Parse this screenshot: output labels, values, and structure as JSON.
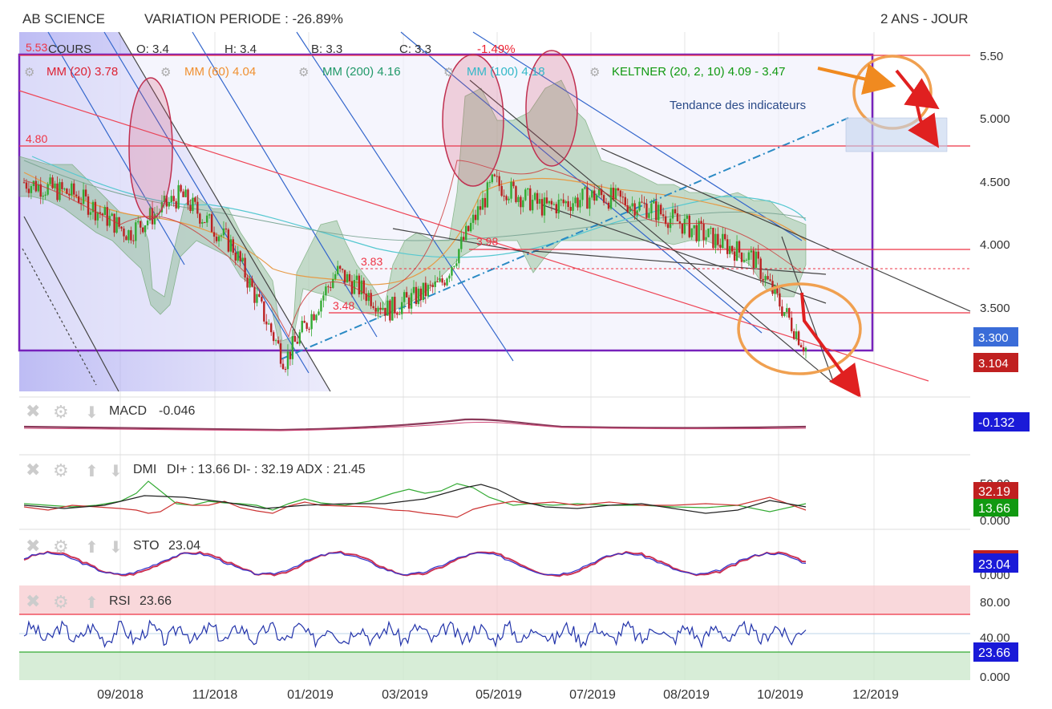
{
  "header": {
    "name": "AB SCIENCE",
    "variation": "VARIATION PERIODE : -26.89%",
    "period": "2 ANS - JOUR"
  },
  "quote": {
    "cours": "COURS",
    "o": "O: 3.4",
    "h": "H: 3.4",
    "b": "B: 3.3",
    "c": "C: 3.3",
    "chg": "-1.49%",
    "high_label": "5.53"
  },
  "indicators": {
    "mm20": "MM (20)  3.78",
    "mm60": "MM (60)  4.04",
    "mm200": "MM (200)  4.16",
    "mm100": "MM (100)  4.18",
    "keltner": "KELTNER (20, 2, 10)  4.09 - 3.47"
  },
  "annotation": "Tendance des indicateurs",
  "levels": [
    {
      "label": "4.80",
      "value": 4.8
    },
    {
      "label": "3.98",
      "value": 3.98
    },
    {
      "label": "3.83",
      "value": 3.83
    },
    {
      "label": "3.48",
      "value": 3.48
    }
  ],
  "colors": {
    "up": "#33aa33",
    "down": "#bb2222",
    "frame": "#7722bb",
    "level": "#ee3344",
    "orange": "#f0a050",
    "arrow": "#e02020",
    "macd": "#9a2a4a",
    "blue": "#2233aa"
  },
  "chart_data": {
    "type": "line",
    "price_axis": {
      "ylim": [
        3.0,
        5.6
      ],
      "ticks": [
        "5.50",
        "5.000",
        "4.500",
        "4.000",
        "3.500"
      ],
      "last_price": "3.300",
      "alt_price": "3.104"
    },
    "x_ticks": [
      "09/2018",
      "11/2018",
      "01/2019",
      "03/2019",
      "05/2019",
      "07/2019",
      "08/2019",
      "10/2019",
      "12/2019"
    ],
    "close": {
      "dates": [
        "07/2018",
        "08/2018",
        "09/2018",
        "10/2018",
        "11/2018",
        "12/2018",
        "01/2019",
        "02/2019",
        "03/2019",
        "04/2019",
        "05/2019",
        "06/2019",
        "07/2019",
        "08/2019",
        "09/2019",
        "10/2019"
      ],
      "values": [
        4.6,
        4.5,
        4.2,
        4.5,
        4.1,
        3.2,
        3.9,
        3.6,
        3.8,
        4.6,
        4.4,
        4.5,
        4.4,
        4.2,
        4.0,
        3.3
      ]
    },
    "panels": [
      {
        "name": "MACD",
        "label": "MACD",
        "value_text": "-0.046",
        "badge": "-0.132"
      },
      {
        "name": "DMI",
        "label": "DMI",
        "value_text": "DI+ : 13.66 DI- : 32.19 ADX : 21.45",
        "ticks": [
          "50.00",
          "0.000"
        ],
        "badges": [
          "32.19",
          "13.66"
        ]
      },
      {
        "name": "STO",
        "label": "STO",
        "value_text": "23.04",
        "ticks": [
          "0.000"
        ],
        "badge": "23.04"
      },
      {
        "name": "RSI",
        "label": "RSI",
        "value_text": "23.66",
        "ticks": [
          "80.00",
          "40.00",
          "0.000"
        ],
        "badge": "23.66"
      }
    ]
  }
}
